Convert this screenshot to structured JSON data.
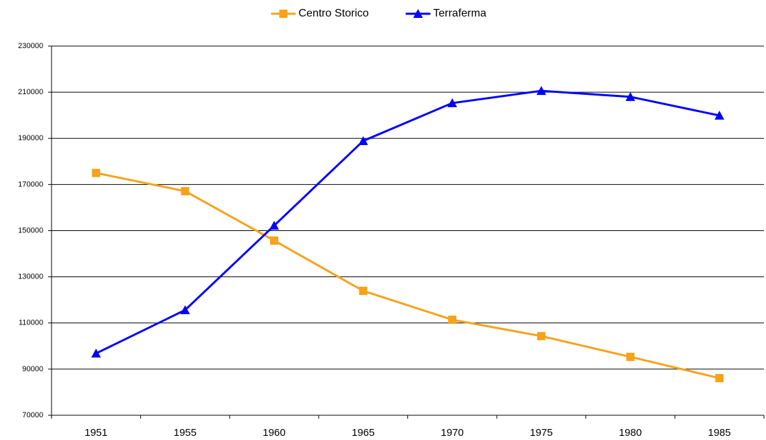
{
  "chart_data": {
    "type": "line",
    "categories": [
      "1951",
      "1955",
      "1960",
      "1965",
      "1970",
      "1975",
      "1980",
      "1985"
    ],
    "series": [
      {
        "name": "Centro Storico",
        "color": "#f7a21b",
        "marker": "square",
        "values": [
          175000,
          167100,
          145700,
          123900,
          111400,
          104300,
          95300,
          86100
        ]
      },
      {
        "name": "Terraferma",
        "color": "#0000ff",
        "marker": "triangle",
        "values": [
          96800,
          115600,
          152200,
          188900,
          205300,
          210600,
          208000,
          199900
        ]
      }
    ],
    "ylim": [
      70000,
      230000
    ],
    "yticks": [
      70000,
      90000,
      110000,
      130000,
      150000,
      170000,
      190000,
      210000,
      230000
    ],
    "grid": true,
    "legend": "top"
  }
}
